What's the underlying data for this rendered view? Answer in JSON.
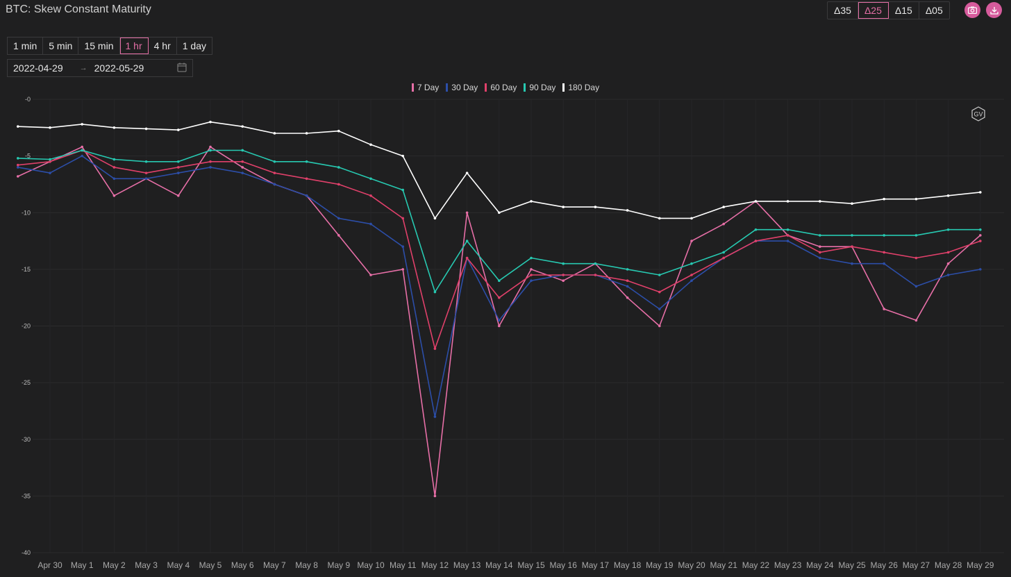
{
  "header": {
    "title": "BTC: Skew Constant Maturity",
    "delta_buttons": [
      "Δ35",
      "Δ25",
      "Δ15",
      "Δ05"
    ],
    "active_delta": "Δ25",
    "camera_icon": "camera-icon",
    "download_icon": "download-icon"
  },
  "controls": {
    "intervals": [
      "1 min",
      "5 min",
      "15 min",
      "1 hr",
      "4 hr",
      "1 day"
    ],
    "active_interval": "1 hr",
    "date_start": "2022-04-29",
    "date_end": "2022-05-29",
    "range_separator": "→",
    "calendar_icon": "calendar-icon"
  },
  "watermark": "GV",
  "colors": {
    "7 Day": "#e76fa7",
    "30 Day": "#2c4ea8",
    "60 Day": "#e0406a",
    "90 Day": "#27c9b1",
    "180 Day": "#ffffff"
  },
  "chart_data": {
    "type": "line",
    "title": "BTC: Skew Constant Maturity",
    "xlabel": "",
    "ylabel": "",
    "ylim": [
      -40,
      0
    ],
    "yticks": [
      "-0",
      "-5",
      "-10",
      "-15",
      "-20",
      "-25",
      "-30",
      "-35",
      "-40"
    ],
    "xtick_labels": [
      "Apr 30",
      "May 1",
      "May 2",
      "May 3",
      "May 4",
      "May 5",
      "May 6",
      "May 7",
      "May 8",
      "May 9",
      "May 10",
      "May 11",
      "May 12",
      "May 13",
      "May 14",
      "May 15",
      "May 16",
      "May 17",
      "May 18",
      "May 19",
      "May 20",
      "May 21",
      "May 22",
      "May 23",
      "May 24",
      "May 25",
      "May 26",
      "May 27",
      "May 28",
      "May 29"
    ],
    "x_unit": "date (2022), daily resolution of key points",
    "legend": "top-center",
    "grid": true,
    "series": [
      {
        "name": "7 Day",
        "x": [
          "2022-04-29",
          "2022-04-30",
          "2022-05-01",
          "2022-05-02",
          "2022-05-03",
          "2022-05-04",
          "2022-05-05",
          "2022-05-06",
          "2022-05-07",
          "2022-05-08",
          "2022-05-09",
          "2022-05-10",
          "2022-05-11",
          "2022-05-12",
          "2022-05-13",
          "2022-05-14",
          "2022-05-15",
          "2022-05-16",
          "2022-05-17",
          "2022-05-18",
          "2022-05-19",
          "2022-05-20",
          "2022-05-21",
          "2022-05-22",
          "2022-05-23",
          "2022-05-24",
          "2022-05-25",
          "2022-05-26",
          "2022-05-27",
          "2022-05-28",
          "2022-05-29"
        ],
        "values": [
          -6.8,
          -5.5,
          -4.2,
          -8.5,
          -7.0,
          -8.5,
          -4.2,
          -6.0,
          -7.5,
          -8.5,
          -12.0,
          -15.5,
          -15.0,
          -35.0,
          -10.0,
          -20.0,
          -15.0,
          -16.0,
          -14.5,
          -17.5,
          -20.0,
          -12.5,
          -11.0,
          -9.0,
          -12.0,
          -13.0,
          -13.0,
          -18.5,
          -19.5,
          -14.5,
          -12.0
        ]
      },
      {
        "name": "30 Day",
        "x": [
          "2022-04-29",
          "2022-04-30",
          "2022-05-01",
          "2022-05-02",
          "2022-05-03",
          "2022-05-04",
          "2022-05-05",
          "2022-05-06",
          "2022-05-07",
          "2022-05-08",
          "2022-05-09",
          "2022-05-10",
          "2022-05-11",
          "2022-05-12",
          "2022-05-13",
          "2022-05-14",
          "2022-05-15",
          "2022-05-16",
          "2022-05-17",
          "2022-05-18",
          "2022-05-19",
          "2022-05-20",
          "2022-05-21",
          "2022-05-22",
          "2022-05-23",
          "2022-05-24",
          "2022-05-25",
          "2022-05-26",
          "2022-05-27",
          "2022-05-28",
          "2022-05-29"
        ],
        "values": [
          -6.0,
          -6.5,
          -5.0,
          -7.0,
          -7.0,
          -6.5,
          -6.0,
          -6.5,
          -7.5,
          -8.5,
          -10.5,
          -11.0,
          -13.0,
          -28.0,
          -14.0,
          -19.5,
          -16.0,
          -15.5,
          -15.5,
          -16.5,
          -18.5,
          -16.0,
          -14.0,
          -12.5,
          -12.5,
          -14.0,
          -14.5,
          -14.5,
          -16.5,
          -15.5,
          -15.0
        ]
      },
      {
        "name": "60 Day",
        "x": [
          "2022-04-29",
          "2022-04-30",
          "2022-05-01",
          "2022-05-02",
          "2022-05-03",
          "2022-05-04",
          "2022-05-05",
          "2022-05-06",
          "2022-05-07",
          "2022-05-08",
          "2022-05-09",
          "2022-05-10",
          "2022-05-11",
          "2022-05-12",
          "2022-05-13",
          "2022-05-14",
          "2022-05-15",
          "2022-05-16",
          "2022-05-17",
          "2022-05-18",
          "2022-05-19",
          "2022-05-20",
          "2022-05-21",
          "2022-05-22",
          "2022-05-23",
          "2022-05-24",
          "2022-05-25",
          "2022-05-26",
          "2022-05-27",
          "2022-05-28",
          "2022-05-29"
        ],
        "values": [
          -5.8,
          -5.5,
          -4.5,
          -6.0,
          -6.5,
          -6.0,
          -5.5,
          -5.5,
          -6.5,
          -7.0,
          -7.5,
          -8.5,
          -10.5,
          -22.0,
          -14.0,
          -17.5,
          -15.5,
          -15.5,
          -15.5,
          -16.0,
          -17.0,
          -15.5,
          -14.0,
          -12.5,
          -12.0,
          -13.5,
          -13.0,
          -13.5,
          -14.0,
          -13.5,
          -12.5
        ]
      },
      {
        "name": "90 Day",
        "x": [
          "2022-04-29",
          "2022-04-30",
          "2022-05-01",
          "2022-05-02",
          "2022-05-03",
          "2022-05-04",
          "2022-05-05",
          "2022-05-06",
          "2022-05-07",
          "2022-05-08",
          "2022-05-09",
          "2022-05-10",
          "2022-05-11",
          "2022-05-12",
          "2022-05-13",
          "2022-05-14",
          "2022-05-15",
          "2022-05-16",
          "2022-05-17",
          "2022-05-18",
          "2022-05-19",
          "2022-05-20",
          "2022-05-21",
          "2022-05-22",
          "2022-05-23",
          "2022-05-24",
          "2022-05-25",
          "2022-05-26",
          "2022-05-27",
          "2022-05-28",
          "2022-05-29"
        ],
        "values": [
          -5.2,
          -5.3,
          -4.5,
          -5.3,
          -5.5,
          -5.5,
          -4.5,
          -4.5,
          -5.5,
          -5.5,
          -6.0,
          -7.0,
          -8.0,
          -17.0,
          -12.5,
          -16.0,
          -14.0,
          -14.5,
          -14.5,
          -15.0,
          -15.5,
          -14.5,
          -13.5,
          -11.5,
          -11.5,
          -12.0,
          -12.0,
          -12.0,
          -12.0,
          -11.5,
          -11.5
        ]
      },
      {
        "name": "180 Day",
        "x": [
          "2022-04-29",
          "2022-04-30",
          "2022-05-01",
          "2022-05-02",
          "2022-05-03",
          "2022-05-04",
          "2022-05-05",
          "2022-05-06",
          "2022-05-07",
          "2022-05-08",
          "2022-05-09",
          "2022-05-10",
          "2022-05-11",
          "2022-05-12",
          "2022-05-13",
          "2022-05-14",
          "2022-05-15",
          "2022-05-16",
          "2022-05-17",
          "2022-05-18",
          "2022-05-19",
          "2022-05-20",
          "2022-05-21",
          "2022-05-22",
          "2022-05-23",
          "2022-05-24",
          "2022-05-25",
          "2022-05-26",
          "2022-05-27",
          "2022-05-28",
          "2022-05-29"
        ],
        "values": [
          -2.4,
          -2.5,
          -2.2,
          -2.5,
          -2.6,
          -2.7,
          -2.0,
          -2.4,
          -3.0,
          -3.0,
          -2.8,
          -4.0,
          -5.0,
          -10.5,
          -6.5,
          -10.0,
          -9.0,
          -9.5,
          -9.5,
          -9.8,
          -10.5,
          -10.5,
          -9.5,
          -9.0,
          -9.0,
          -9.0,
          -9.2,
          -8.8,
          -8.8,
          -8.5,
          -8.2
        ]
      }
    ]
  }
}
